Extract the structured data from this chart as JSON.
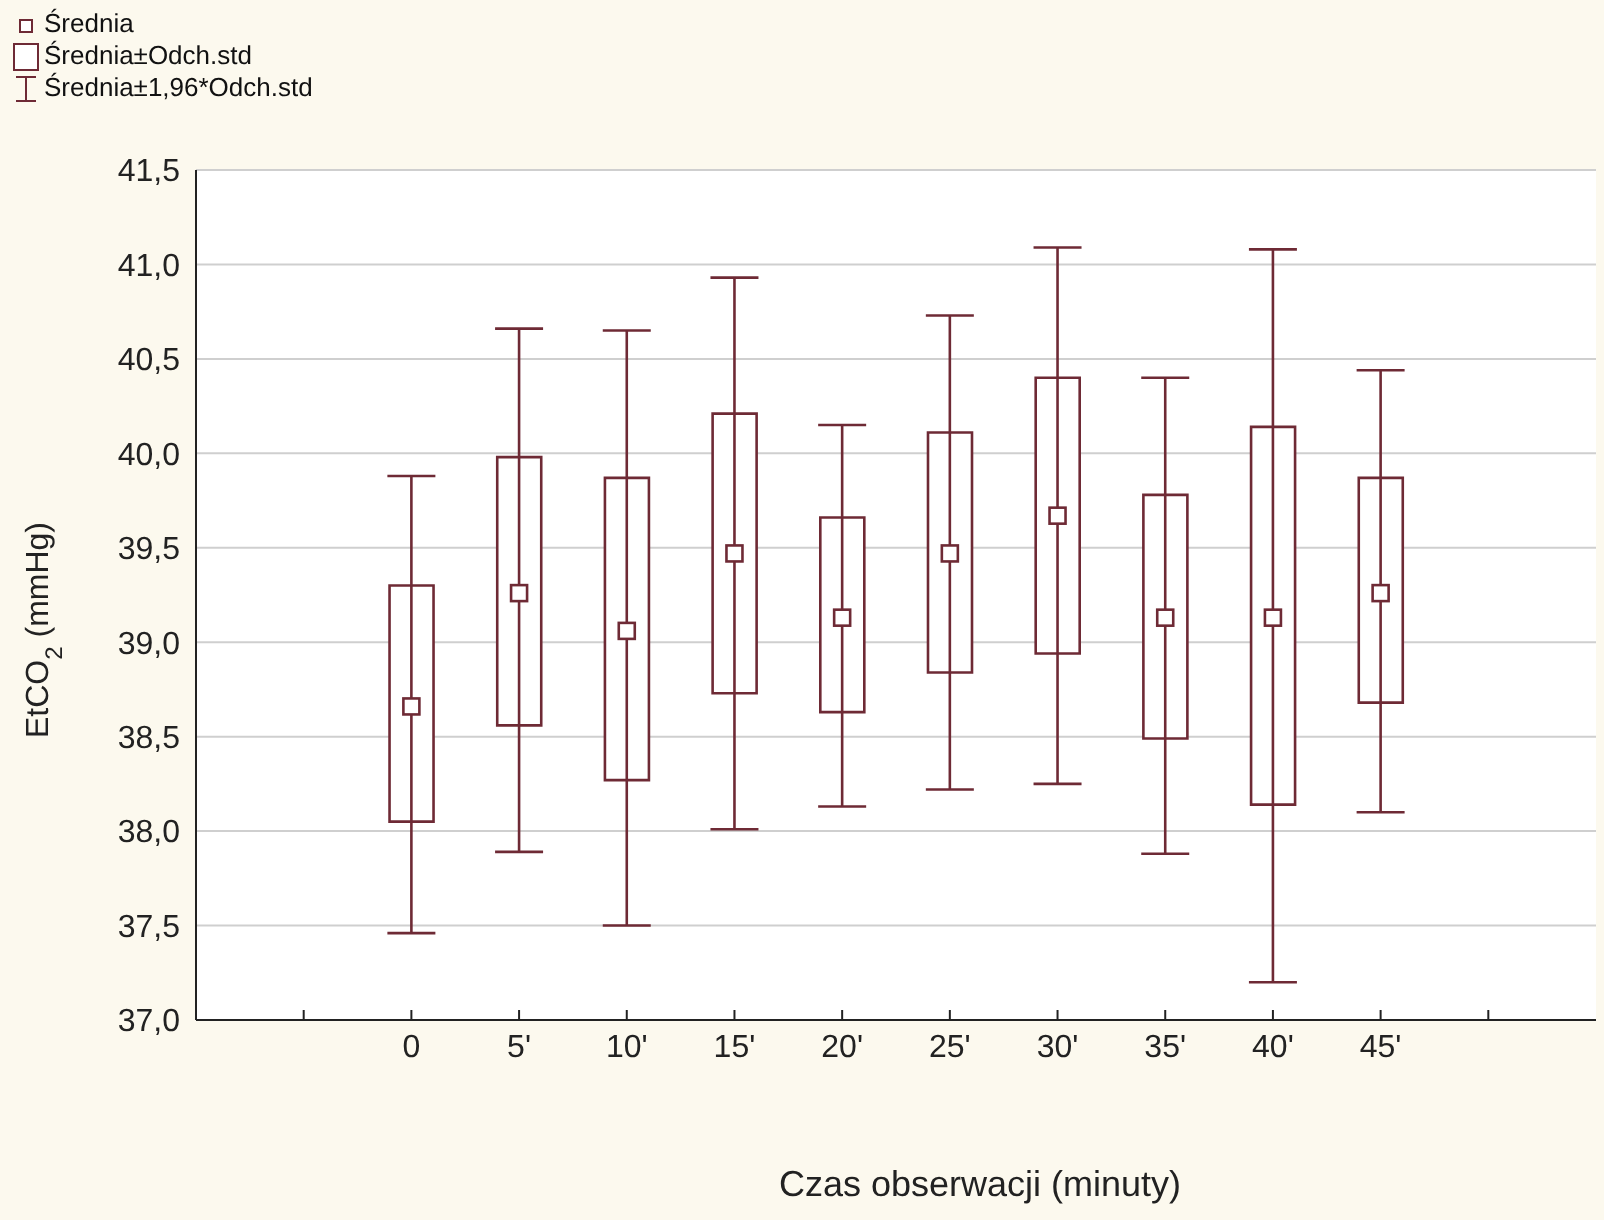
{
  "chart_data": {
    "type": "scatter",
    "xlabel": "Czas obserwacji (minuty)",
    "ylabel": "EtCO$_{2}$ (mmHg)",
    "categories": [
      null,
      "0",
      "5'",
      "10'",
      "15'",
      "20'",
      "25'",
      "30'",
      "35'",
      "40'",
      "45'",
      null
    ],
    "ylim": [
      37.0,
      41.5
    ],
    "yticks": [
      {
        "value": 37.0,
        "label": "37,0"
      },
      {
        "value": 37.5,
        "label": "37,5"
      },
      {
        "value": 38.0,
        "label": "38,0"
      },
      {
        "value": 38.5,
        "label": "38,5"
      },
      {
        "value": 39.0,
        "label": "39,0"
      },
      {
        "value": 39.5,
        "label": "39,5"
      },
      {
        "value": 40.0,
        "label": "40,0"
      },
      {
        "value": 40.5,
        "label": "40,5"
      },
      {
        "value": 41.0,
        "label": "41,0"
      },
      {
        "value": 41.5,
        "label": "41,5"
      }
    ],
    "grid": "y",
    "legend": "top left",
    "annotations": [
      "Średnia±1,96*Odch.std"
    ],
    "series": [
      {
        "name": "Średnia",
        "marker": "square",
        "color": "#6e2a35",
        "values": [
          null,
          38.66,
          39.26,
          39.06,
          39.47,
          39.13,
          39.47,
          39.67,
          39.13,
          39.13,
          39.26,
          null
        ],
        "errors": [
          null,
          [
            37.46,
            39.88
          ],
          [
            37.89,
            40.66
          ],
          [
            37.5,
            40.65
          ],
          [
            38.01,
            40.93
          ],
          [
            38.13,
            40.15
          ],
          [
            38.22,
            40.73
          ],
          [
            38.25,
            41.09
          ],
          [
            37.88,
            40.4
          ],
          [
            37.2,
            41.08
          ],
          [
            38.1,
            40.44
          ],
          null
        ]
      },
      {
        "name": "Średnia±Odch.std",
        "type": "bar",
        "color": "#6e2a35",
        "base": [
          null,
          38.05,
          38.56,
          38.27,
          38.73,
          38.63,
          38.84,
          38.94,
          38.49,
          38.14,
          38.68,
          null
        ],
        "values": [
          null,
          1.25,
          1.42,
          1.6,
          1.48,
          1.03,
          1.27,
          1.46,
          1.29,
          2.0,
          1.19,
          null
        ]
      }
    ]
  }
}
